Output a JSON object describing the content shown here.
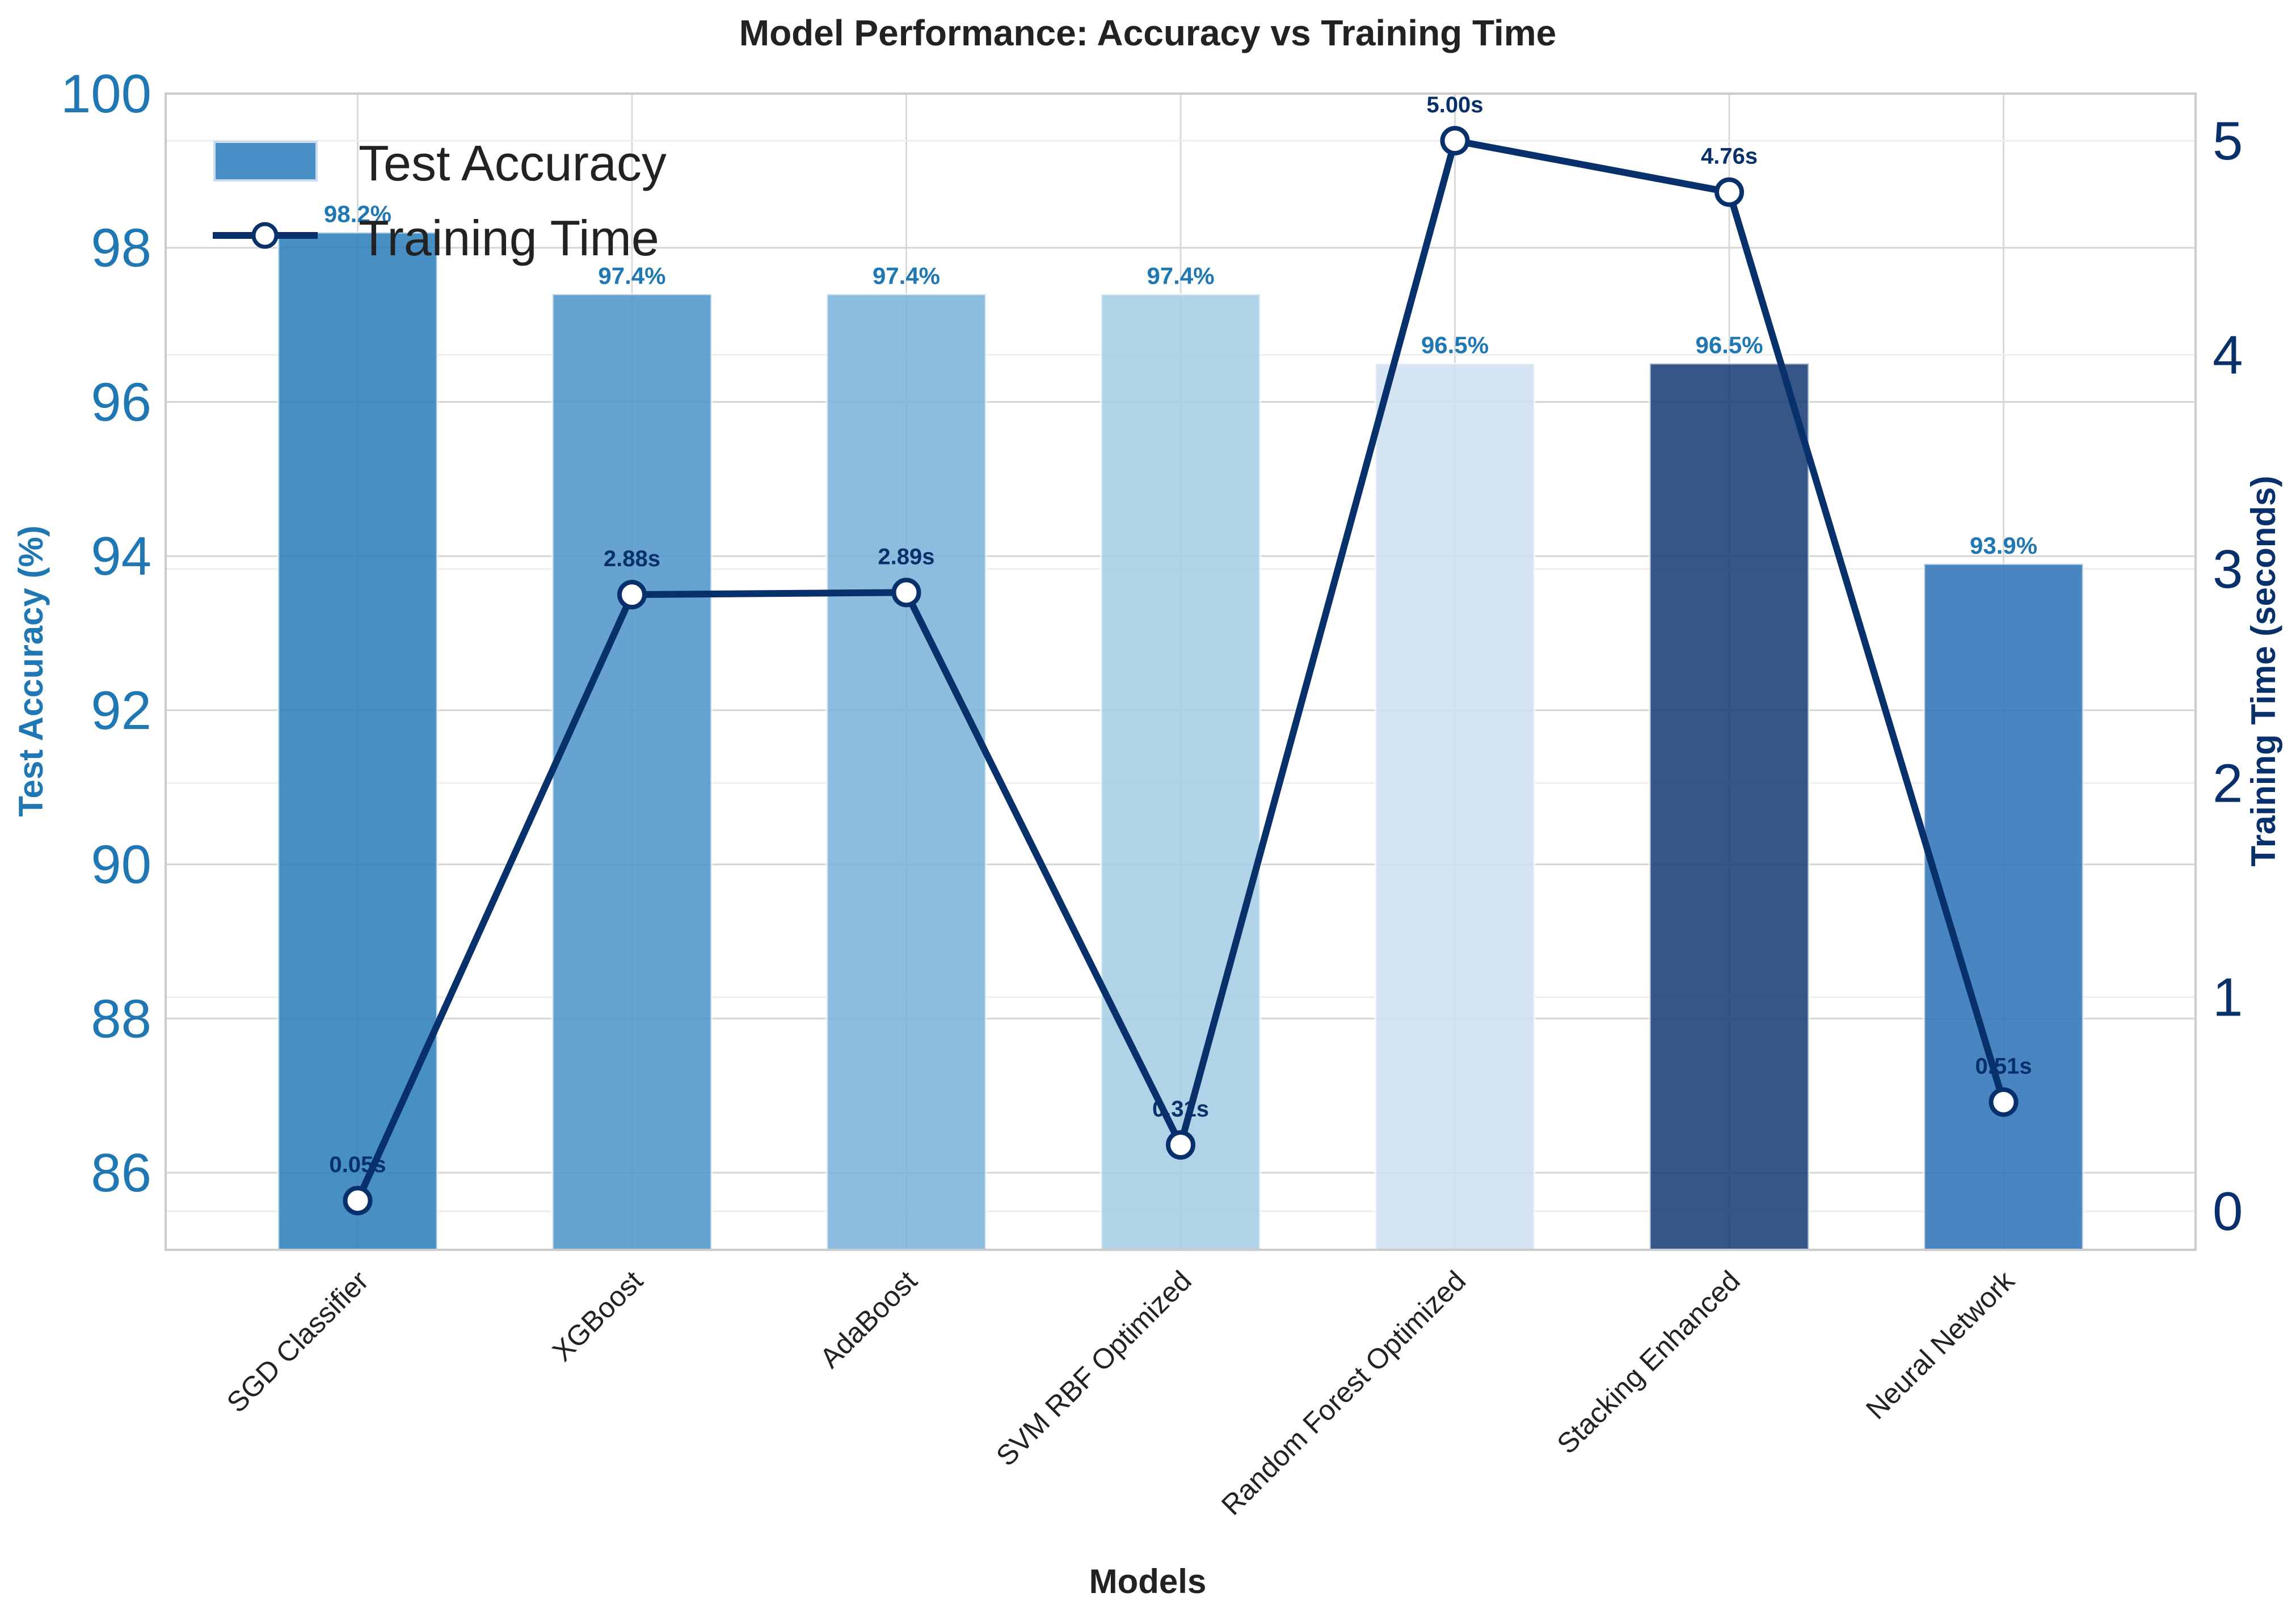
{
  "chart_data": {
    "type": "bar",
    "title": "Model Performance: Accuracy vs Training Time",
    "xlabel": "Models",
    "ylabel": "Test Accuracy (%)",
    "y2label": "Training Time (seconds)",
    "categories": [
      "SGD Classifier",
      "XGBoost",
      "AdaBoost",
      "SVM RBF Optimized",
      "Random Forest Optimized",
      "Stacking Enhanced",
      "Neural Network"
    ],
    "ylim": [
      85,
      100
    ],
    "y2lim": [
      -0.18,
      5.22
    ],
    "yticks": [
      "86",
      "88",
      "90",
      "92",
      "94",
      "96",
      "98",
      "100"
    ],
    "y2ticks": [
      "0",
      "1",
      "2",
      "3",
      "4",
      "5"
    ],
    "grid": true,
    "legend_position": "top-left",
    "series": [
      {
        "name": "Test Accuracy",
        "kind": "bar",
        "values": [
          98.2,
          97.4,
          97.4,
          97.4,
          96.5,
          96.5,
          93.9
        ],
        "labels": [
          "98.2%",
          "97.4%",
          "97.4%",
          "97.4%",
          "96.5%",
          "96.5%",
          "93.9%"
        ],
        "colors": [
          "#2f7fbc",
          "#5296c9",
          "#7cb4db",
          "#a6cde5",
          "#cfe0f1",
          "#1a3f76",
          "#3074b8"
        ],
        "label_color": "#1f77b4"
      },
      {
        "name": "Training Time",
        "kind": "line",
        "axis": "right",
        "values": [
          0.05,
          2.88,
          2.89,
          0.31,
          5.0,
          4.76,
          0.51
        ],
        "labels": [
          "0.05s",
          "2.88s",
          "2.89s",
          "0.31s",
          "5.00s",
          "4.76s",
          "0.51s"
        ],
        "color": "#08306b"
      }
    ]
  }
}
